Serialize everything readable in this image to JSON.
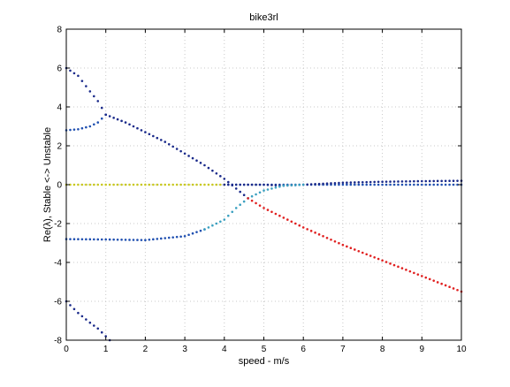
{
  "chart_data": {
    "type": "scatter",
    "title": "bike3rl",
    "xlabel": "speed - m/s",
    "ylabel": "Re(λ), Stable <-> Unstable",
    "xlim": [
      0,
      10
    ],
    "ylim": [
      -8,
      8
    ],
    "xticks": [
      0,
      1,
      2,
      3,
      4,
      5,
      6,
      7,
      8,
      9,
      10
    ],
    "yticks": [
      -8,
      -6,
      -4,
      -2,
      0,
      2,
      4,
      6,
      8
    ],
    "grid": true,
    "legend": "none",
    "colors": {
      "dark_blue": "#1a2a8a",
      "blue": "#1f4fb0",
      "teal": "#3aa0c0",
      "yellow": "#c8c820",
      "red": "#e02020",
      "grid": "#c8c8c8"
    },
    "series": [
      {
        "color": "dark_blue",
        "x": [
          0,
          0.3,
          0.6,
          0.8,
          1.0
        ],
        "y": [
          6.0,
          5.6,
          4.8,
          4.3,
          3.6
        ]
      },
      {
        "color": "blue",
        "x": [
          0,
          0.3,
          0.6,
          0.8,
          1.0
        ],
        "y": [
          2.8,
          2.85,
          3.0,
          3.2,
          3.6
        ]
      },
      {
        "color": "dark_blue",
        "x": [
          1.0,
          1.5,
          2.0,
          2.5,
          3.0,
          3.5,
          4.0,
          4.3,
          4.6
        ],
        "y": [
          3.6,
          3.2,
          2.7,
          2.2,
          1.6,
          1.0,
          0.3,
          -0.2,
          -0.7
        ]
      },
      {
        "color": "blue",
        "x": [
          4.0,
          4.5,
          5.0,
          6.0,
          7.0,
          8.0,
          9.0,
          10.0
        ],
        "y": [
          0.0,
          0.0,
          0.0,
          0.0,
          0.0,
          0.0,
          0.0,
          0.0
        ]
      },
      {
        "color": "yellow",
        "x": [
          0.0,
          1.0,
          2.0,
          3.0,
          4.0
        ],
        "y": [
          0.0,
          0.0,
          0.0,
          0.0,
          0.0
        ]
      },
      {
        "color": "dark_blue",
        "x": [
          4.0,
          4.3,
          4.6,
          5.0,
          5.5,
          6.0,
          7.0,
          8.0,
          9.0,
          10.0
        ],
        "y": [
          0.0,
          0.0,
          0.0,
          0.0,
          -0.05,
          0.0,
          0.1,
          0.15,
          0.18,
          0.2
        ]
      },
      {
        "color": "blue",
        "x": [
          0,
          1,
          2,
          3,
          3.5
        ],
        "y": [
          -2.8,
          -2.82,
          -2.85,
          -2.65,
          -2.3
        ]
      },
      {
        "color": "teal",
        "x": [
          3.5,
          4.0,
          4.3,
          4.6,
          5.0,
          5.5,
          6.0
        ],
        "y": [
          -2.3,
          -1.8,
          -1.2,
          -0.7,
          -0.3,
          -0.05,
          0.0
        ]
      },
      {
        "color": "red",
        "x": [
          4.6,
          5.0,
          5.5,
          6.0,
          7.0,
          8.0,
          9.0,
          10.0
        ],
        "y": [
          -0.7,
          -1.2,
          -1.7,
          -2.2,
          -3.1,
          -3.9,
          -4.7,
          -5.5
        ]
      },
      {
        "color": "dark_blue",
        "x": [
          0,
          0.3,
          0.6,
          0.8,
          1.0,
          1.1
        ],
        "y": [
          -6.0,
          -6.6,
          -7.1,
          -7.4,
          -7.8,
          -8.0
        ]
      }
    ]
  }
}
